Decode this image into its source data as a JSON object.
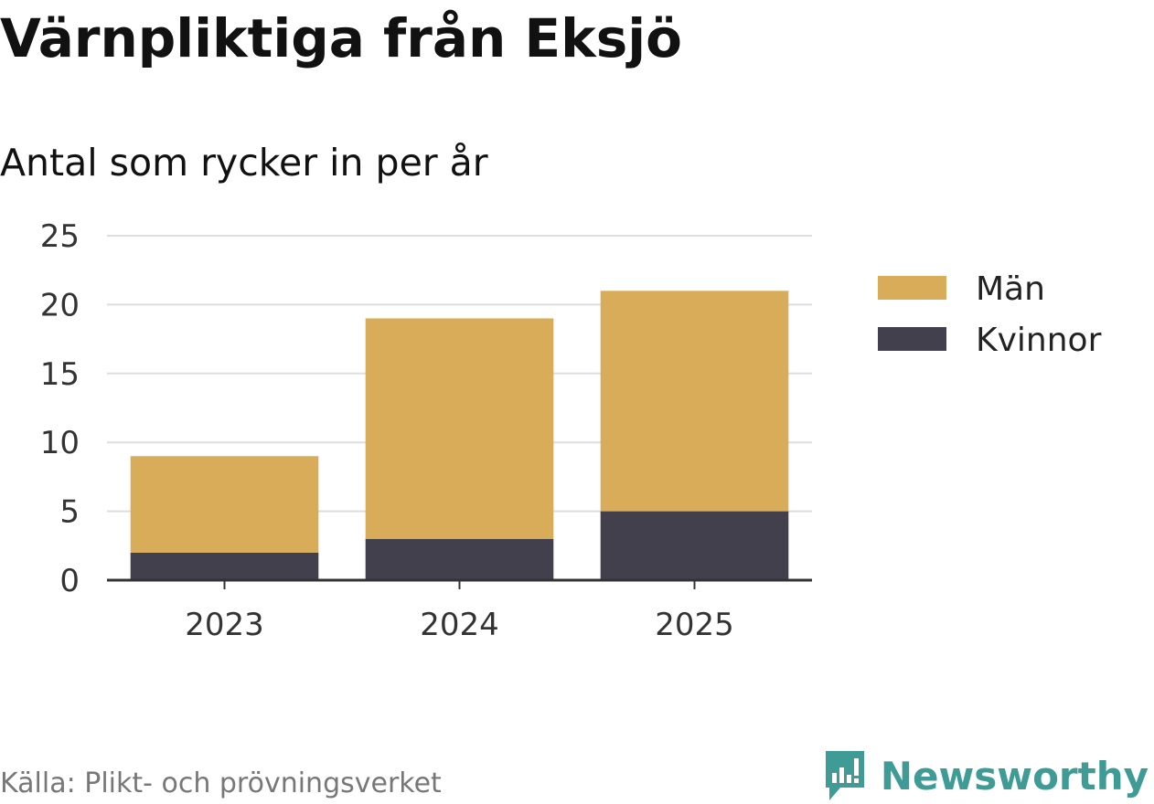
{
  "title": "Värnpliktiga från Eksjö",
  "subtitle": "Antal som rycker in per år",
  "source": "Källa: Plikt- och prövningsverket",
  "brand": {
    "name": "Newsworthy",
    "icon": "newsworthy-logo-icon",
    "color": "#3e9b95"
  },
  "chart_data": {
    "type": "bar",
    "stacked": true,
    "categories": [
      "2023",
      "2024",
      "2025"
    ],
    "series": [
      {
        "name": "Kvinnor",
        "values": [
          2,
          3,
          5
        ],
        "color": "#43404d"
      },
      {
        "name": "Män",
        "values": [
          7,
          16,
          16
        ],
        "color": "#d9ac5a"
      }
    ],
    "legend_order": [
      "Män",
      "Kvinnor"
    ],
    "legend_position": "right",
    "ylim": [
      0,
      25
    ],
    "yticks": [
      0,
      5,
      10,
      15,
      20,
      25
    ],
    "grid": true,
    "xlabel": "",
    "ylabel": ""
  }
}
